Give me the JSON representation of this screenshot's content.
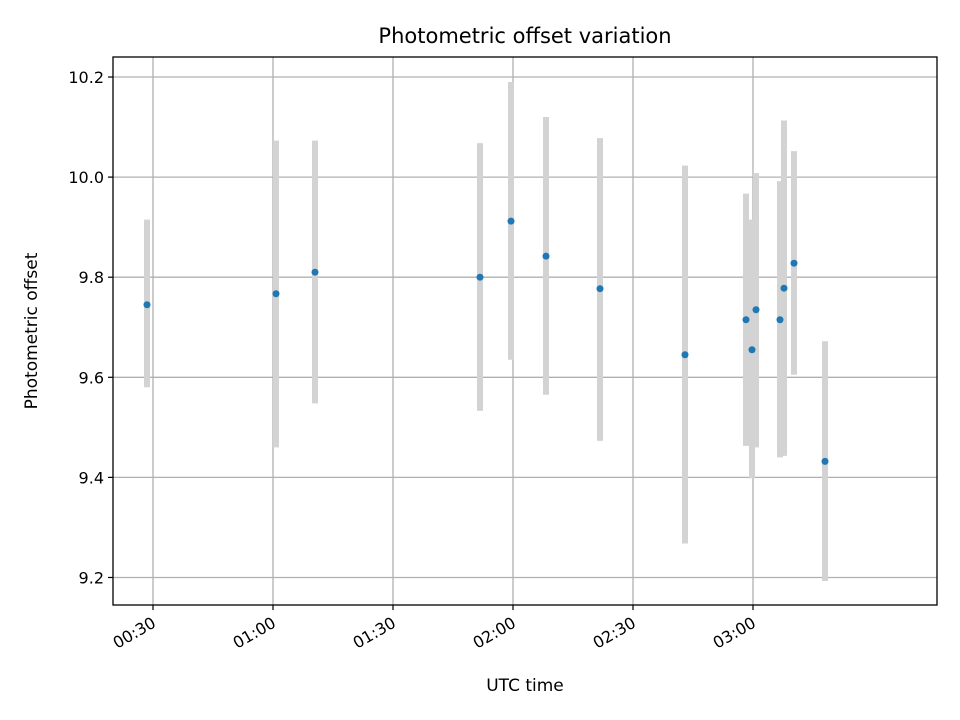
{
  "chart_data": {
    "type": "scatter",
    "title": "Photometric offset variation",
    "xlabel": "UTC time",
    "ylabel": "Photometric offset",
    "xlim": [
      "00:20",
      "03:46"
    ],
    "ylim": [
      9.145,
      10.24
    ],
    "grid": true,
    "x_ticks": [
      "00:30",
      "01:00",
      "01:30",
      "02:00",
      "02:30",
      "03:00"
    ],
    "y_ticks": [
      9.2,
      9.4,
      9.6,
      9.8,
      10.0,
      10.2
    ],
    "y_tick_labels": [
      "9.2",
      "9.4",
      "9.6",
      "9.8",
      "10.0",
      "10.2"
    ],
    "point_color": "#1f77b4",
    "errorbar_color": "#d3d3d3",
    "points": [
      {
        "x": "00:28:30",
        "y": 9.745,
        "ylow": 9.58,
        "yhigh": 9.915
      },
      {
        "x": "01:00:45",
        "y": 9.767,
        "ylow": 9.46,
        "yhigh": 10.073
      },
      {
        "x": "01:10:30",
        "y": 9.81,
        "ylow": 9.548,
        "yhigh": 10.073
      },
      {
        "x": "01:51:45",
        "y": 9.8,
        "ylow": 9.533,
        "yhigh": 10.068
      },
      {
        "x": "01:59:30",
        "y": 9.912,
        "ylow": 9.635,
        "yhigh": 10.19
      },
      {
        "x": "02:08:15",
        "y": 9.842,
        "ylow": 9.565,
        "yhigh": 10.12
      },
      {
        "x": "02:21:45",
        "y": 9.777,
        "ylow": 9.473,
        "yhigh": 10.078
      },
      {
        "x": "02:43:00",
        "y": 9.645,
        "ylow": 9.268,
        "yhigh": 10.023
      },
      {
        "x": "02:58:15",
        "y": 9.715,
        "ylow": 9.463,
        "yhigh": 9.967
      },
      {
        "x": "02:59:45",
        "y": 9.655,
        "ylow": 9.398,
        "yhigh": 9.915
      },
      {
        "x": "03:00:45",
        "y": 9.735,
        "ylow": 9.46,
        "yhigh": 10.008
      },
      {
        "x": "03:06:45",
        "y": 9.715,
        "ylow": 9.44,
        "yhigh": 9.992
      },
      {
        "x": "03:07:45",
        "y": 9.778,
        "ylow": 9.443,
        "yhigh": 10.113
      },
      {
        "x": "03:10:15",
        "y": 9.828,
        "ylow": 9.605,
        "yhigh": 10.052
      },
      {
        "x": "03:18:00",
        "y": 9.432,
        "ylow": 9.193,
        "yhigh": 9.672
      }
    ]
  }
}
